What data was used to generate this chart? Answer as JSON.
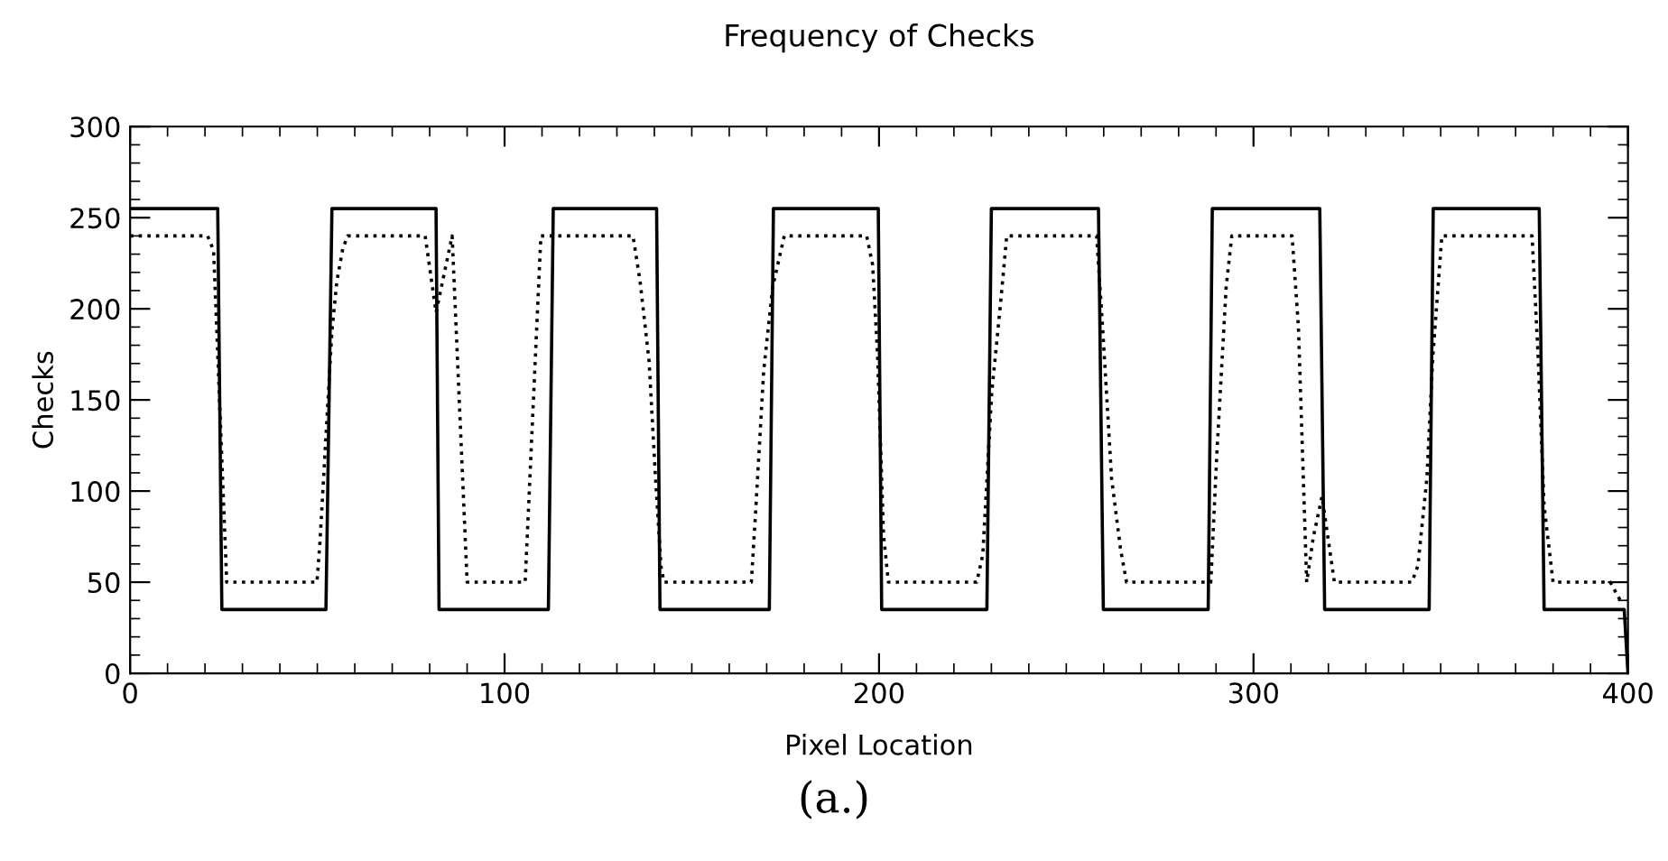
{
  "chart_data": {
    "type": "line",
    "title": "Frequency of Checks",
    "xlabel": "Pixel Location",
    "ylabel": "Checks",
    "annotations": [
      "(a.)"
    ],
    "xlim": [
      0,
      400
    ],
    "xticks": [
      0,
      100,
      200,
      300,
      400
    ],
    "ylim": [
      0,
      300
    ],
    "yticks": [
      0,
      50,
      100,
      150,
      200,
      250,
      300
    ],
    "grid": false,
    "legend": false,
    "marker": "none",
    "series": [
      {
        "color": "#000000",
        "line_style": "solid",
        "x": [
          0,
          23.4,
          24.5,
          52.3,
          53.9,
          81.7,
          82.5,
          111.7,
          113,
          140.6,
          141.5,
          170.7,
          171.8,
          199.8,
          200.7,
          228.8,
          230,
          258.6,
          259.9,
          287.9,
          289,
          317.7,
          319,
          346.9,
          348,
          376.3,
          377.6,
          399,
          400
        ],
        "values": [
          255,
          255,
          35,
          35,
          255,
          255,
          35,
          35,
          255,
          255,
          35,
          35,
          255,
          255,
          35,
          35,
          255,
          255,
          35,
          35,
          255,
          255,
          35,
          35,
          255,
          255,
          35,
          35,
          0
        ]
      },
      {
        "color": "#000000",
        "line_style": "dotted",
        "x": [
          0,
          20.7,
          22.3,
          25.8,
          49.9,
          50.7,
          53.9,
          55.2,
          56.8,
          58.1,
          78.8,
          81.7,
          86,
          90,
          105.5,
          109.7,
          134.3,
          136.2,
          138.6,
          140.2,
          141.8,
          142.6,
          165.9,
          167,
          169.2,
          171.6,
          174.7,
          196.7,
          198.3,
          199.6,
          201.2,
          202.5,
          226.1,
          227.7,
          230.1,
          232.5,
          234.1,
          258.1,
          259.7,
          262.1,
          264.5,
          266.1,
          288.6,
          290.2,
          292.7,
          294.2,
          310.3,
          312,
          314.2,
          316,
          318.3,
          321.6,
          342.3,
          343.9,
          346.3,
          347.9,
          350.3,
          374.4,
          376,
          377.6,
          380,
          395.3,
          396.6,
          398.5
        ],
        "values": [
          240,
          240,
          232,
          50,
          50,
          72,
          188,
          215,
          233,
          240,
          240,
          198,
          240,
          50,
          50,
          240,
          240,
          215,
          171,
          111,
          58,
          50,
          50,
          87,
          166,
          212,
          240,
          240,
          224,
          175,
          76,
          50,
          50,
          65,
          154,
          204,
          240,
          240,
          190,
          107,
          68,
          50,
          50,
          120,
          212,
          240,
          240,
          190,
          50,
          75,
          97,
          50,
          50,
          59,
          107,
          174,
          240,
          240,
          174,
          92,
          50,
          50,
          45,
          38
        ]
      }
    ]
  }
}
